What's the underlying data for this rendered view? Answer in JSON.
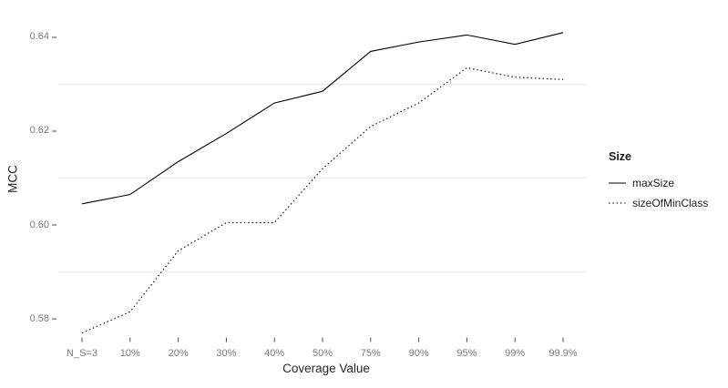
{
  "chart_data": {
    "type": "line",
    "title": "",
    "xlabel": "Coverage Value",
    "ylabel": "MCC",
    "categories": [
      "N_S=3",
      "10%",
      "20%",
      "30%",
      "40%",
      "50%",
      "75%",
      "90%",
      "95%",
      "99%",
      "99.9%"
    ],
    "series": [
      {
        "name": "maxSize",
        "line_style": "solid",
        "values": [
          0.6045,
          0.6065,
          0.6135,
          0.6195,
          0.626,
          0.6285,
          0.637,
          0.639,
          0.6405,
          0.6385,
          0.641
        ]
      },
      {
        "name": "sizeOfMinClass",
        "line_style": "dotted",
        "values": [
          0.577,
          0.5815,
          0.5945,
          0.6005,
          0.6005,
          0.612,
          0.621,
          0.626,
          0.6335,
          0.6315,
          0.631
        ]
      }
    ],
    "ytick_labels": [
      "0.58",
      "0.60",
      "0.62",
      "0.64"
    ],
    "ytick_values": [
      0.58,
      0.6,
      0.62,
      0.64
    ],
    "grid_minor_values": [
      0.59,
      0.61,
      0.63
    ],
    "ylim": [
      0.5764,
      0.6464
    ],
    "grid": "horizontal-minor-only",
    "legend": {
      "title": "Size",
      "position": "right"
    },
    "colors": {
      "line": "#000000",
      "grid": "#ececec",
      "tick": "#4d4d4d",
      "tick_label": "#7b7b7b",
      "axis_title": "#262626",
      "legend_text": "#1a1a1a",
      "background": "#ffffff"
    }
  }
}
